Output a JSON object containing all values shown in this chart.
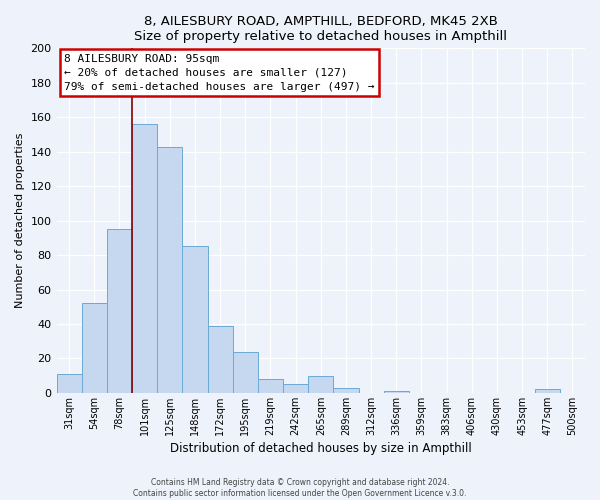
{
  "title1": "8, AILESBURY ROAD, AMPTHILL, BEDFORD, MK45 2XB",
  "title2": "Size of property relative to detached houses in Ampthill",
  "xlabel": "Distribution of detached houses by size in Ampthill",
  "ylabel": "Number of detached properties",
  "bar_labels": [
    "31sqm",
    "54sqm",
    "78sqm",
    "101sqm",
    "125sqm",
    "148sqm",
    "172sqm",
    "195sqm",
    "219sqm",
    "242sqm",
    "265sqm",
    "289sqm",
    "312sqm",
    "336sqm",
    "359sqm",
    "383sqm",
    "406sqm",
    "430sqm",
    "453sqm",
    "477sqm",
    "500sqm"
  ],
  "bar_values": [
    11,
    52,
    95,
    156,
    143,
    85,
    39,
    24,
    8,
    5,
    10,
    3,
    0,
    1,
    0,
    0,
    0,
    0,
    0,
    2,
    0
  ],
  "bar_color": "#c5d8f0",
  "bar_edge_color": "#6aaad4",
  "annotation_title": "8 AILESBURY ROAD: 95sqm",
  "annotation_line1": "← 20% of detached houses are smaller (127)",
  "annotation_line2": "79% of semi-detached houses are larger (497) →",
  "annotation_box_color": "#ffffff",
  "annotation_box_edge": "#cc0000",
  "vline_color": "#8b0000",
  "ylim": [
    0,
    200
  ],
  "yticks": [
    0,
    20,
    40,
    60,
    80,
    100,
    120,
    140,
    160,
    180,
    200
  ],
  "footer1": "Contains HM Land Registry data © Crown copyright and database right 2024.",
  "footer2": "Contains public sector information licensed under the Open Government Licence v.3.0.",
  "bg_color": "#eef2fa",
  "grid_color": "#ffffff",
  "vline_index": 3
}
